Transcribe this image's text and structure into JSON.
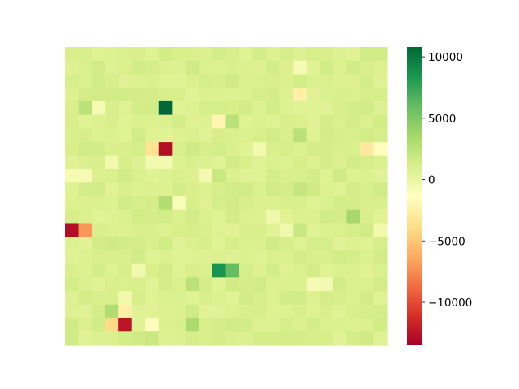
{
  "chart_data": {
    "type": "heatmap",
    "rows": 22,
    "cols": 24,
    "colormap": "RdYlGn",
    "vmin": -13500,
    "vmax": 10800,
    "background_value": 0,
    "cells": [
      {
        "r": 4,
        "c": 7,
        "v": 10800
      },
      {
        "r": 7,
        "c": 7,
        "v": -12800
      },
      {
        "r": 7,
        "c": 6,
        "v": -3500
      },
      {
        "r": 13,
        "c": 0,
        "v": -12800
      },
      {
        "r": 13,
        "c": 1,
        "v": -7000
      },
      {
        "r": 16,
        "c": 11,
        "v": 8500
      },
      {
        "r": 16,
        "c": 12,
        "v": 6000
      },
      {
        "r": 20,
        "c": 3,
        "v": -4000
      },
      {
        "r": 20,
        "c": 4,
        "v": -12500
      },
      {
        "r": 3,
        "c": 17,
        "v": -2500
      },
      {
        "r": 5,
        "c": 11,
        "v": -2000
      },
      {
        "r": 5,
        "c": 12,
        "v": 2500
      },
      {
        "r": 7,
        "c": 22,
        "v": -3000
      },
      {
        "r": 7,
        "c": 23,
        "v": -1500
      },
      {
        "r": 19,
        "c": 3,
        "v": 3000
      },
      {
        "r": 19,
        "c": 4,
        "v": -2500
      },
      {
        "r": 20,
        "c": 6,
        "v": -1500
      },
      {
        "r": 20,
        "c": 9,
        "v": 3200
      },
      {
        "r": 11,
        "c": 7,
        "v": 3000
      },
      {
        "r": 12,
        "c": 21,
        "v": 3500
      },
      {
        "r": 6,
        "c": 17,
        "v": 2500
      },
      {
        "r": 17,
        "c": 9,
        "v": 2500
      },
      {
        "r": 4,
        "c": 1,
        "v": 2500
      },
      {
        "r": 4,
        "c": 2,
        "v": -800
      },
      {
        "r": 1,
        "c": 17,
        "v": -800
      },
      {
        "r": 9,
        "c": 0,
        "v": -800
      },
      {
        "r": 9,
        "c": 1,
        "v": -800
      },
      {
        "r": 11,
        "c": 8,
        "v": -1000
      },
      {
        "r": 8,
        "c": 3,
        "v": -500
      },
      {
        "r": 8,
        "c": 6,
        "v": -600
      },
      {
        "r": 8,
        "c": 7,
        "v": -600
      },
      {
        "r": 9,
        "c": 10,
        "v": -600
      },
      {
        "r": 7,
        "c": 14,
        "v": -600
      },
      {
        "r": 17,
        "c": 18,
        "v": -800
      },
      {
        "r": 17,
        "c": 19,
        "v": -600
      },
      {
        "r": 16,
        "c": 5,
        "v": -400
      },
      {
        "r": 18,
        "c": 4,
        "v": -500
      },
      {
        "r": 13,
        "c": 23,
        "v": -500
      },
      {
        "r": 12,
        "c": 15,
        "v": -400
      },
      {
        "r": 13,
        "c": 16,
        "v": -400
      },
      {
        "r": 10,
        "c": 17,
        "v": 2000
      },
      {
        "r": 10,
        "c": 18,
        "v": 1500
      },
      {
        "r": 9,
        "c": 11,
        "v": 1800
      },
      {
        "r": 13,
        "c": 17,
        "v": 1800
      },
      {
        "r": 0,
        "c": 14,
        "v": 1300
      },
      {
        "r": 1,
        "c": 5,
        "v": 1400
      },
      {
        "r": 2,
        "c": 2,
        "v": 1400
      },
      {
        "r": 9,
        "c": 20,
        "v": 1500
      },
      {
        "r": 12,
        "c": 0,
        "v": 1200
      },
      {
        "r": 18,
        "c": 16,
        "v": 1400
      },
      {
        "r": 21,
        "c": 6,
        "v": 1800
      },
      {
        "r": 14,
        "c": 23,
        "v": 1200
      },
      {
        "r": 3,
        "c": 22,
        "v": 1200
      },
      {
        "r": 3,
        "c": 23,
        "v": 1200
      },
      {
        "r": 6,
        "c": 0,
        "v": 1000
      }
    ]
  },
  "colorbar": {
    "ticks": [
      {
        "value": 10000,
        "label": "10000"
      },
      {
        "value": 5000,
        "label": "5000"
      },
      {
        "value": 0,
        "label": "0"
      },
      {
        "value": -5000,
        "label": "−5000"
      },
      {
        "value": -10000,
        "label": "−10000"
      }
    ]
  }
}
